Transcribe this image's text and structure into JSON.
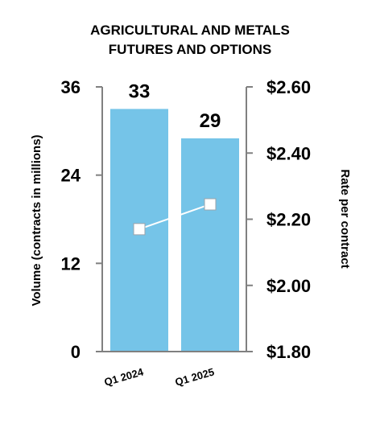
{
  "chart_data": {
    "type": "bar",
    "title": [
      "AGRICULTURAL AND METALS",
      "FUTURES AND OPTIONS"
    ],
    "categories": [
      "Q1 2024",
      "Q1 2025"
    ],
    "series": [
      {
        "type": "bar",
        "axis": "left",
        "values": [
          33,
          29
        ],
        "data_labels": [
          "33",
          "29"
        ],
        "color": "#75C4E8"
      },
      {
        "type": "line",
        "axis": "right",
        "values": [
          2.17,
          2.245
        ],
        "color": "#ffffff",
        "marker": "square"
      }
    ],
    "y_left": {
      "label": "Volume (contracts in millions)",
      "range": [
        0,
        36
      ],
      "ticks": [
        0,
        12,
        24,
        36
      ],
      "tick_labels": [
        "0",
        "12",
        "24",
        "36"
      ]
    },
    "y_right": {
      "label": "Rate per contract",
      "range": [
        1.8,
        2.6
      ],
      "ticks": [
        1.8,
        2.0,
        2.2,
        2.4,
        2.6
      ],
      "tick_labels": [
        "$1.80",
        "$2.00",
        "$2.20",
        "$2.40",
        "$2.60"
      ]
    },
    "grid": false,
    "legend": "none",
    "axis_color": "#808080"
  }
}
